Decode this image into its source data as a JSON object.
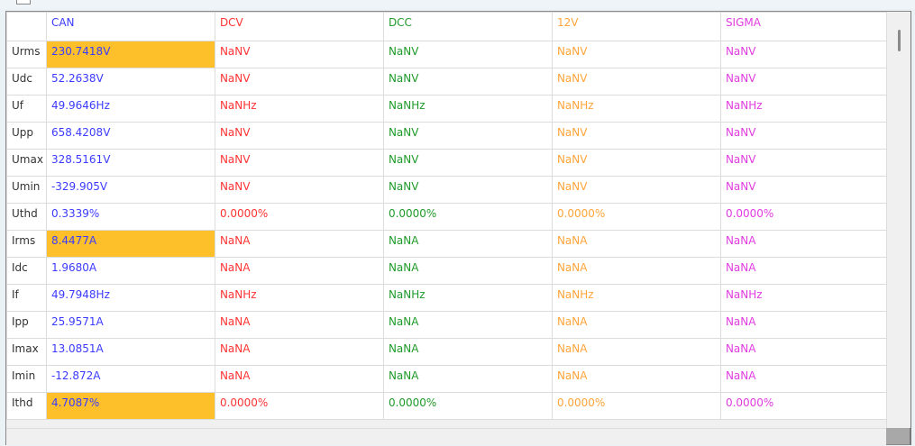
{
  "colors": {
    "CAN": "#3b3bff",
    "DCV": "#ff3333",
    "DCC": "#1f9a2a",
    "12V": "#ffa43a",
    "SIGMA": "#e03ce0",
    "highlight": "#fdc02a"
  },
  "columns": [
    "CAN",
    "DCV",
    "DCC",
    "12V",
    "SIGMA"
  ],
  "rows": [
    {
      "label": "Urms",
      "values": [
        "230.7418V",
        "NaNV",
        "NaNV",
        "NaNV",
        "NaNV"
      ],
      "highlight": true
    },
    {
      "label": "Udc",
      "values": [
        "52.2638V",
        "NaNV",
        "NaNV",
        "NaNV",
        "NaNV"
      ],
      "highlight": false
    },
    {
      "label": "Uf",
      "values": [
        "49.9646Hz",
        "NaNHz",
        "NaNHz",
        "NaNHz",
        "NaNHz"
      ],
      "highlight": false
    },
    {
      "label": "Upp",
      "values": [
        "658.4208V",
        "NaNV",
        "NaNV",
        "NaNV",
        "NaNV"
      ],
      "highlight": false
    },
    {
      "label": "Umax",
      "values": [
        "328.5161V",
        "NaNV",
        "NaNV",
        "NaNV",
        "NaNV"
      ],
      "highlight": false
    },
    {
      "label": "Umin",
      "values": [
        "-329.905V",
        "NaNV",
        "NaNV",
        "NaNV",
        "NaNV"
      ],
      "highlight": false
    },
    {
      "label": "Uthd",
      "values": [
        "0.3339%",
        "0.0000%",
        "0.0000%",
        "0.0000%",
        "0.0000%"
      ],
      "highlight": false
    },
    {
      "label": "Irms",
      "values": [
        "8.4477A",
        "NaNA",
        "NaNA",
        "NaNA",
        "NaNA"
      ],
      "highlight": true
    },
    {
      "label": "Idc",
      "values": [
        "1.9680A",
        "NaNA",
        "NaNA",
        "NaNA",
        "NaNA"
      ],
      "highlight": false
    },
    {
      "label": "If",
      "values": [
        "49.7948Hz",
        "NaNHz",
        "NaNHz",
        "NaNHz",
        "NaNHz"
      ],
      "highlight": false
    },
    {
      "label": "Ipp",
      "values": [
        "25.9571A",
        "NaNA",
        "NaNA",
        "NaNA",
        "NaNA"
      ],
      "highlight": false
    },
    {
      "label": "Imax",
      "values": [
        "13.0851A",
        "NaNA",
        "NaNA",
        "NaNA",
        "NaNA"
      ],
      "highlight": false
    },
    {
      "label": "Imin",
      "values": [
        "-12.872A",
        "NaNA",
        "NaNA",
        "NaNA",
        "NaNA"
      ],
      "highlight": false
    },
    {
      "label": "Ithd",
      "values": [
        "4.7087%",
        "0.0000%",
        "0.0000%",
        "0.0000%",
        "0.0000%"
      ],
      "highlight": true
    }
  ]
}
